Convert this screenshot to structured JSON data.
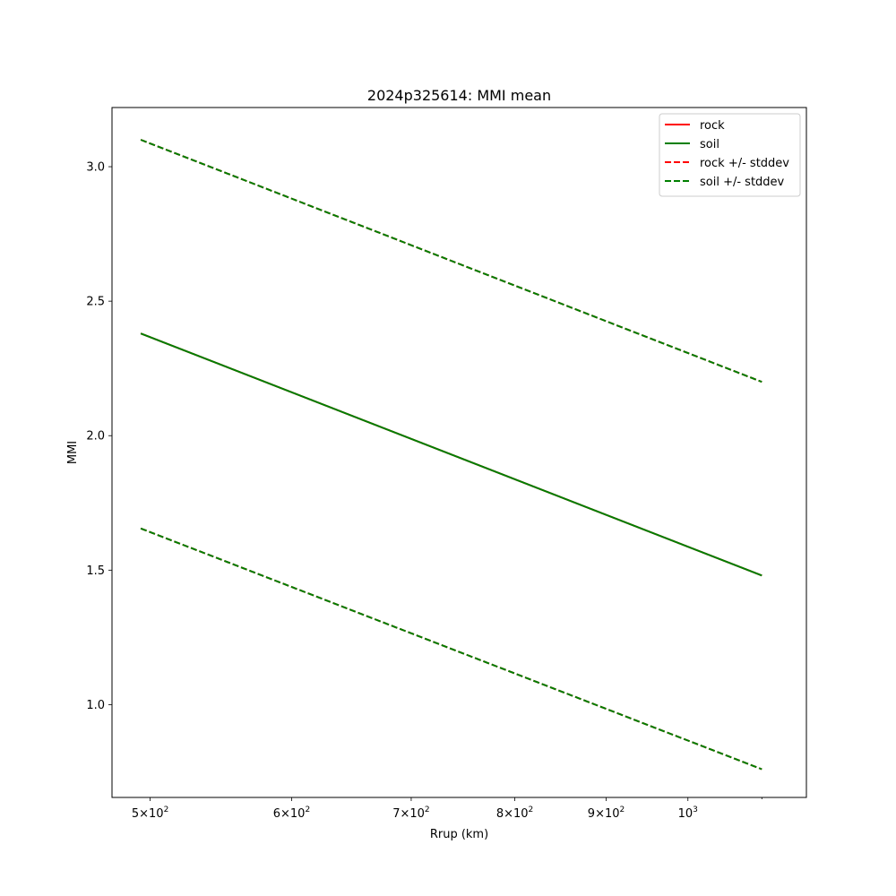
{
  "chart_data": {
    "type": "line",
    "title": "2024p325614: MMI mean",
    "xlabel": "Rrup (km)",
    "ylabel": "MMI",
    "xscale": "log",
    "xlim": [
      476,
      1165
    ],
    "ylim": [
      0.655,
      3.22
    ],
    "x_ticks": [
      {
        "value": 500,
        "base": "5",
        "exp": "2"
      },
      {
        "value": 600,
        "base": "6",
        "exp": "2"
      },
      {
        "value": 700,
        "base": "7",
        "exp": "2"
      },
      {
        "value": 800,
        "base": "8",
        "exp": "2"
      },
      {
        "value": 900,
        "base": "9",
        "exp": "2"
      },
      {
        "value": 1000,
        "base": "",
        "exp": "3"
      }
    ],
    "y_ticks": [
      "1.0",
      "1.5",
      "2.0",
      "2.5",
      "3.0"
    ],
    "legend_position": "top-right",
    "grid": false,
    "series": [
      {
        "name": "rock",
        "color": "#ff0000",
        "style": "solid",
        "x": [
          494,
          1100
        ],
        "y": [
          2.38,
          1.48
        ]
      },
      {
        "name": "soil",
        "color": "#007f00",
        "style": "solid",
        "x": [
          494,
          1100
        ],
        "y": [
          2.38,
          1.48
        ]
      },
      {
        "name": "rock +/- stddev",
        "color": "#ff0000",
        "style": "dashed",
        "x": [
          494,
          1100
        ],
        "y": [
          3.1,
          2.2
        ],
        "y_lower": [
          1.655,
          0.76
        ]
      },
      {
        "name": "soil +/- stddev",
        "color": "#007f00",
        "style": "dashed",
        "x": [
          494,
          1100
        ],
        "y": [
          3.1,
          2.2
        ],
        "y_lower": [
          1.655,
          0.76
        ]
      }
    ]
  }
}
